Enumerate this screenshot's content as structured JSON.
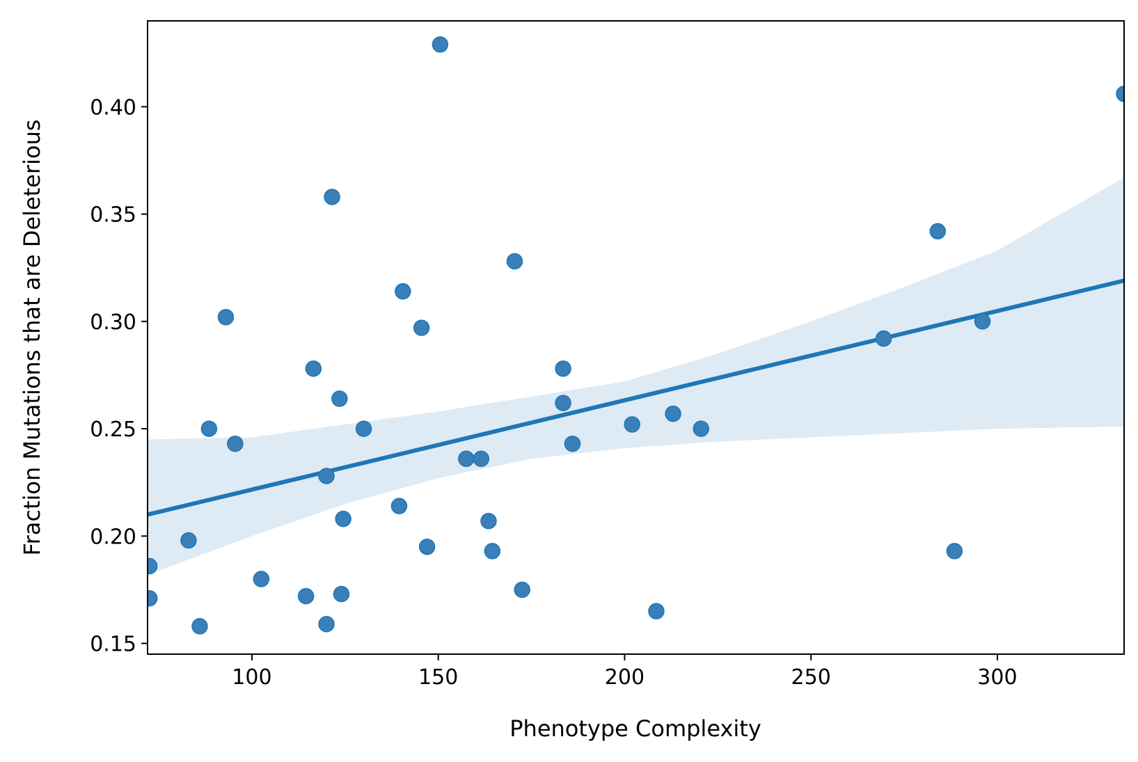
{
  "chart_data": {
    "type": "scatter",
    "xlabel": "Phenotype Complexity",
    "ylabel": "Fraction Mutations that are Deleterious",
    "xlim": [
      72,
      334
    ],
    "ylim": [
      0.145,
      0.44
    ],
    "xticks": [
      100,
      150,
      200,
      250,
      300
    ],
    "yticks": [
      0.15,
      0.2,
      0.25,
      0.3,
      0.35,
      0.4
    ],
    "xtick_labels": [
      "100",
      "150",
      "200",
      "250",
      "300"
    ],
    "ytick_labels": [
      "0.15",
      "0.20",
      "0.25",
      "0.30",
      "0.35",
      "0.40"
    ],
    "grid": false,
    "points": [
      {
        "x": 150.5,
        "y": 0.429
      },
      {
        "x": 334.0,
        "y": 0.406
      },
      {
        "x": 121.5,
        "y": 0.358
      },
      {
        "x": 284.0,
        "y": 0.342
      },
      {
        "x": 170.5,
        "y": 0.328
      },
      {
        "x": 140.5,
        "y": 0.314
      },
      {
        "x": 93.0,
        "y": 0.302
      },
      {
        "x": 145.5,
        "y": 0.297
      },
      {
        "x": 296.0,
        "y": 0.3
      },
      {
        "x": 269.5,
        "y": 0.292
      },
      {
        "x": 116.5,
        "y": 0.278
      },
      {
        "x": 183.5,
        "y": 0.278
      },
      {
        "x": 123.5,
        "y": 0.264
      },
      {
        "x": 183.5,
        "y": 0.262
      },
      {
        "x": 213.0,
        "y": 0.257
      },
      {
        "x": 202.0,
        "y": 0.252
      },
      {
        "x": 88.5,
        "y": 0.25
      },
      {
        "x": 130.0,
        "y": 0.25
      },
      {
        "x": 220.5,
        "y": 0.25
      },
      {
        "x": 95.5,
        "y": 0.243
      },
      {
        "x": 186.0,
        "y": 0.243
      },
      {
        "x": 157.5,
        "y": 0.236
      },
      {
        "x": 161.5,
        "y": 0.236
      },
      {
        "x": 120.0,
        "y": 0.228
      },
      {
        "x": 139.5,
        "y": 0.214
      },
      {
        "x": 124.5,
        "y": 0.208
      },
      {
        "x": 163.5,
        "y": 0.207
      },
      {
        "x": 83.0,
        "y": 0.198
      },
      {
        "x": 147.0,
        "y": 0.195
      },
      {
        "x": 164.5,
        "y": 0.193
      },
      {
        "x": 288.5,
        "y": 0.193
      },
      {
        "x": 72.5,
        "y": 0.186
      },
      {
        "x": 102.5,
        "y": 0.18
      },
      {
        "x": 172.5,
        "y": 0.175
      },
      {
        "x": 124.0,
        "y": 0.173
      },
      {
        "x": 114.5,
        "y": 0.172
      },
      {
        "x": 72.5,
        "y": 0.171
      },
      {
        "x": 208.5,
        "y": 0.165
      },
      {
        "x": 120.0,
        "y": 0.159
      },
      {
        "x": 86.0,
        "y": 0.158
      }
    ],
    "regression": {
      "x": [
        72,
        334
      ],
      "y": [
        0.21,
        0.319
      ]
    },
    "confidence_band": {
      "x": [
        72,
        100,
        125,
        150,
        175,
        200,
        225,
        250,
        275,
        300,
        334
      ],
      "upper": [
        0.245,
        0.246,
        0.252,
        0.258,
        0.265,
        0.272,
        0.285,
        0.3,
        0.316,
        0.333,
        0.367
      ],
      "lower": [
        0.182,
        0.2,
        0.215,
        0.227,
        0.236,
        0.241,
        0.244,
        0.246,
        0.248,
        0.25,
        0.251
      ]
    },
    "colors": {
      "points": "#3a7fb8",
      "line": "#1f77b4",
      "band": "#deeaf4"
    }
  }
}
